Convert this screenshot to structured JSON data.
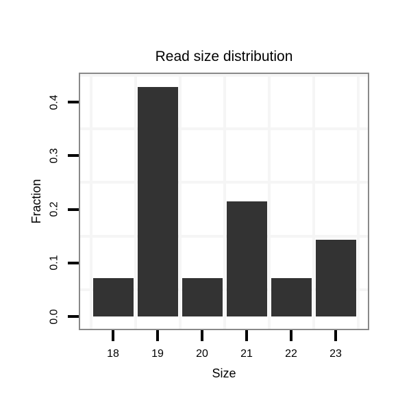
{
  "chart_data": {
    "type": "bar",
    "title": "Read size distribution",
    "xlabel": "Size",
    "ylabel": "Fraction",
    "categories": [
      "18",
      "19",
      "20",
      "21",
      "22",
      "23"
    ],
    "values": [
      0.0714,
      0.4286,
      0.0714,
      0.2143,
      0.0714,
      0.1429
    ],
    "series_note": "single series, dark gray bars",
    "y_tick_labels": [
      "0.0",
      "0.1",
      "0.2",
      "0.3",
      "0.4"
    ],
    "y_tick_values": [
      0.0,
      0.1,
      0.2,
      0.3,
      0.4
    ],
    "x_tick_values": [
      18,
      19,
      20,
      21,
      22,
      23
    ],
    "ylim": [
      -0.023,
      0.455
    ],
    "xlim": [
      17.26,
      23.76
    ],
    "grid": "minor-only",
    "y_minor_gridlines": [
      0.05,
      0.15,
      0.25,
      0.35,
      0.45
    ],
    "x_minor_gridlines": [
      17.5,
      18.5,
      19.5,
      20.5,
      21.5,
      22.5,
      23.5
    ],
    "legend": "none",
    "axis_text_orientation": {
      "x": "horizontal",
      "y": "rotated-90"
    },
    "colors": {
      "background": "#ffffff",
      "bar": "#333333",
      "panel_border": "#898989",
      "gridline": "#f5f5f5",
      "tick": "#000000",
      "text": "#000000"
    }
  }
}
